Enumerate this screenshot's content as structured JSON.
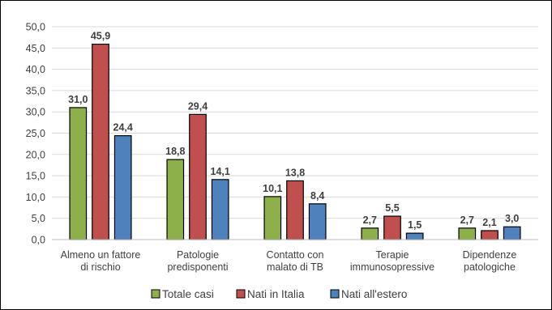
{
  "chart_data": {
    "type": "bar",
    "categories": [
      [
        "Almeno un fattore",
        "di rischio"
      ],
      [
        "Patologie",
        "predisponenti"
      ],
      [
        "Contatto con",
        "malato di TB"
      ],
      [
        "Terapie",
        "immunosopressive"
      ],
      [
        "Dipendenze",
        "patologiche"
      ]
    ],
    "series": [
      {
        "name": "Totale casi",
        "color": "#8DB04B",
        "values": [
          31.0,
          18.8,
          10.1,
          2.7,
          2.7
        ],
        "labels": [
          "31,0",
          "18,8",
          "10,1",
          "2,7",
          "2,7"
        ]
      },
      {
        "name": "Nati in Italia",
        "color": "#C0504D",
        "values": [
          45.9,
          29.4,
          13.8,
          5.5,
          2.1
        ],
        "labels": [
          "45,9",
          "29,4",
          "13,8",
          "5,5",
          "2,1"
        ]
      },
      {
        "name": "Nati all'estero",
        "color": "#4F81BD",
        "values": [
          24.4,
          14.1,
          8.4,
          1.5,
          3.0
        ],
        "labels": [
          "24,4",
          "14,1",
          "8,4",
          "1,5",
          "3,0"
        ]
      }
    ],
    "ylim": [
      0,
      50
    ],
    "yticks": [
      0,
      5,
      10,
      15,
      20,
      25,
      30,
      35,
      40,
      45,
      50
    ],
    "ytick_labels": [
      "0,0",
      "5,0",
      "10,0",
      "15,0",
      "20,0",
      "25,0",
      "30,0",
      "35,0",
      "40,0",
      "45,0",
      "50,0"
    ],
    "grid": true,
    "legend_position": "bottom",
    "bar_outline_color": "#000000",
    "gridline_color": "#D9D9D9"
  }
}
